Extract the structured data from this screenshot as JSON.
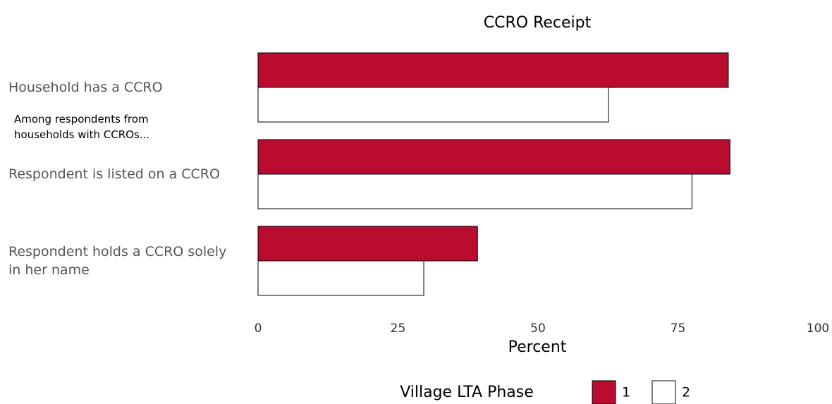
{
  "chart_data": {
    "type": "bar",
    "orientation": "horizontal",
    "title": "CCRO Receipt",
    "categories": [
      "Household has a CCRO",
      "Respondent is listed on a CCRO",
      "Respondent holds a CCRO solely in her name"
    ],
    "annotation": "Among respondents from households with CCROs...",
    "series": [
      {
        "name": "1",
        "color": "#ba0c2f",
        "values": [
          84.0,
          84.3,
          39.2
        ]
      },
      {
        "name": "2",
        "color": "#ffffff",
        "values": [
          62.6,
          77.5,
          29.6
        ]
      }
    ],
    "xlabel": "Percent",
    "xlim": [
      0,
      100
    ],
    "xticks": [
      0,
      25,
      50,
      75,
      100
    ],
    "legend_title": "Village LTA Phase",
    "legend": "bottom",
    "grid": false
  }
}
